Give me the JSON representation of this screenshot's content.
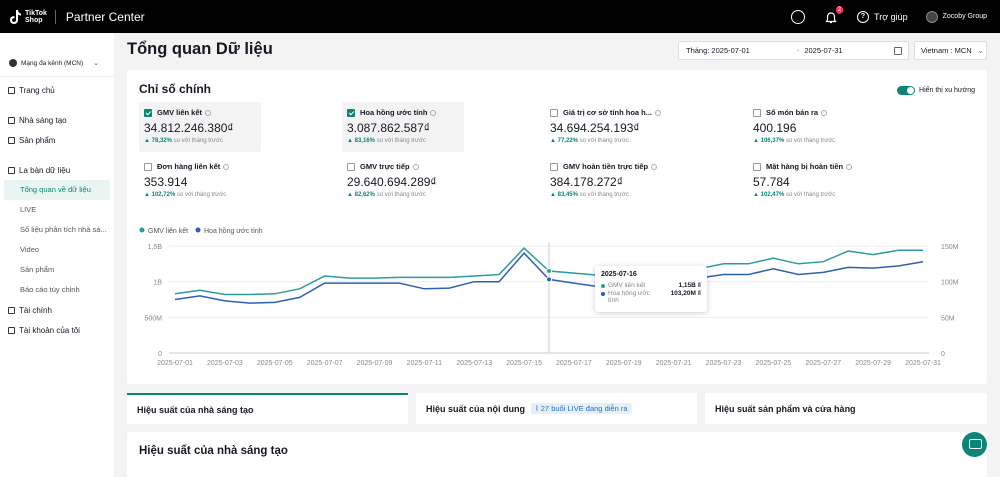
{
  "topbar": {
    "logo_text_1": "TikTok",
    "logo_text_2": "Shop",
    "app_title": "Partner Center",
    "notification_count": "2",
    "help_label": "Trợ giúp",
    "account_name": "Zocoby Group"
  },
  "sidebar": {
    "account": "Mạng đa kênh (MCN)",
    "items": [
      {
        "label": "Trang chủ"
      },
      {
        "label": "Nhà sáng tạo"
      },
      {
        "label": "Sản phẩm"
      },
      {
        "label": "La bàn dữ liệu"
      },
      {
        "label": "Tổng quan về dữ liệu"
      },
      {
        "label": "LIVE"
      },
      {
        "label": "Số liệu phân tích nhà sá..."
      },
      {
        "label": "Video"
      },
      {
        "label": "Sản phẩm"
      },
      {
        "label": "Báo cáo tùy chỉnh"
      },
      {
        "label": "Tài chính"
      },
      {
        "label": "Tài khoản của tôi"
      }
    ]
  },
  "header": {
    "title": "Tổng quan Dữ liệu",
    "date_from": "Tháng: 2025-07-01",
    "date_to": "2025-07-31",
    "region": "Vietnam : MCN"
  },
  "metrics_card": {
    "title": "Chỉ số chính",
    "toggle_label": "Hiển thị xu hướng",
    "comparison_text": "so với tháng trước",
    "metrics": [
      {
        "label": "GMV liên kết",
        "value": "34.812.246.380₫",
        "delta": "78,32%",
        "checked": true
      },
      {
        "label": "Hoa hồng ước tính",
        "value": "3.087.862.587₫",
        "delta": "83,16%",
        "checked": true
      },
      {
        "label": "Giá trị cơ sở tính hoa h...",
        "value": "34.694.254.193₫",
        "delta": "77,22%",
        "checked": false
      },
      {
        "label": "Số món bán ra",
        "value": "400.196",
        "delta": "106,37%",
        "checked": false
      },
      {
        "label": "Đơn hàng liên kết",
        "value": "353.914",
        "delta": "102,72%",
        "checked": false
      },
      {
        "label": "GMV trực tiếp",
        "value": "29.640.694.289₫",
        "delta": "82,62%",
        "checked": false
      },
      {
        "label": "GMV hoàn tiền trực tiếp",
        "value": "384.178.272₫",
        "delta": "83,45%",
        "checked": false
      },
      {
        "label": "Mặt hàng bị hoàn tiền",
        "value": "57.784",
        "delta": "102,47%",
        "checked": false
      }
    ]
  },
  "colors": {
    "accent": "#0c8577",
    "series_gmv": "#2a9d9b",
    "series_commission": "#2f5fb3"
  },
  "chart_data": {
    "type": "line",
    "x": [
      "2025-07-01",
      "2025-07-02",
      "2025-07-03",
      "2025-07-04",
      "2025-07-05",
      "2025-07-06",
      "2025-07-07",
      "2025-07-08",
      "2025-07-09",
      "2025-07-10",
      "2025-07-11",
      "2025-07-12",
      "2025-07-13",
      "2025-07-14",
      "2025-07-15",
      "2025-07-16",
      "2025-07-17",
      "2025-07-18",
      "2025-07-19",
      "2025-07-20",
      "2025-07-21",
      "2025-07-22",
      "2025-07-23",
      "2025-07-24",
      "2025-07-25",
      "2025-07-26",
      "2025-07-27",
      "2025-07-28",
      "2025-07-29",
      "2025-07-30",
      "2025-07-31"
    ],
    "x_tick_labels": [
      "2025-07-01",
      "2025-07-03",
      "2025-07-05",
      "2025-07-07",
      "2025-07-09",
      "2025-07-11",
      "2025-07-13",
      "2025-07-15",
      "2025-07-17",
      "2025-07-19",
      "2025-07-21",
      "2025-07-23",
      "2025-07-25",
      "2025-07-27",
      "2025-07-29",
      "2025-07-31"
    ],
    "y_left_ticks": [
      "0",
      "500M",
      "1B",
      "1,5B"
    ],
    "y_left_range": [
      0,
      1500000000
    ],
    "y_right_ticks": [
      "0",
      "50M",
      "100M",
      "150M"
    ],
    "y_right_range": [
      0,
      150000000
    ],
    "legend_position": "top-left",
    "series": [
      {
        "name": "GMV liên kết",
        "axis": "left",
        "values": [
          830000000,
          880000000,
          820000000,
          820000000,
          830000000,
          900000000,
          1080000000,
          1050000000,
          1050000000,
          1060000000,
          1060000000,
          1060000000,
          1080000000,
          1100000000,
          1470000000,
          1150000000,
          1120000000,
          1090000000,
          1030000000,
          1080000000,
          1050000000,
          1180000000,
          1250000000,
          1250000000,
          1330000000,
          1250000000,
          1280000000,
          1430000000,
          1380000000,
          1440000000,
          1440000000
        ]
      },
      {
        "name": "Hoa hồng ước tính",
        "axis": "right",
        "values": [
          75000000,
          80000000,
          73000000,
          70000000,
          71000000,
          78000000,
          98000000,
          98000000,
          98000000,
          98000000,
          90000000,
          91000000,
          100000000,
          100000000,
          140000000,
          103200000,
          98000000,
          93000000,
          93000000,
          97000000,
          99000000,
          105000000,
          110000000,
          110000000,
          118000000,
          110000000,
          113000000,
          120000000,
          119000000,
          122000000,
          128000000
        ]
      }
    ]
  },
  "tooltip": {
    "date": "2025-07-16",
    "row1_name": "GMV liên kết",
    "row1_value": "1,15B ₫",
    "row2_name": "Hoa hồng ước tính",
    "row2_value": "103,20M ₫"
  },
  "tabs": {
    "creator": "Hiệu suất của nhà sáng tạo",
    "content": "Hiệu suất của nội dung",
    "live_badge": "27 buổi LIVE đang diễn ra",
    "product": "Hiệu suất sản phẩm và cửa hàng"
  },
  "section": {
    "title": "Hiệu suất của nhà sáng tạo"
  }
}
